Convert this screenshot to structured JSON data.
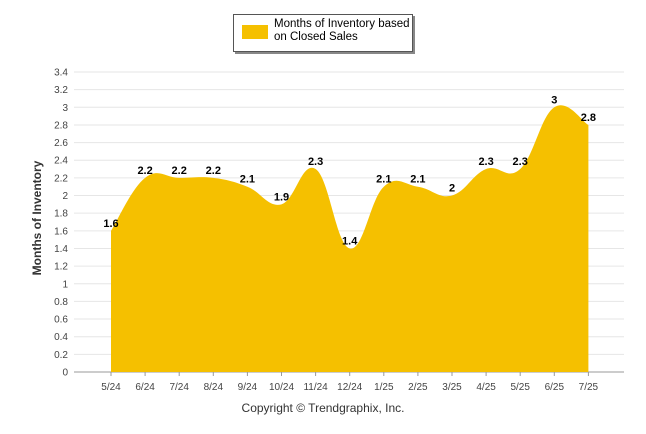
{
  "legend": {
    "label": "Months of Inventory based on Closed Sales"
  },
  "footer": {
    "copyright": "Copyright © Trendgraphix, Inc."
  },
  "colors": {
    "area": "#F5C000",
    "grid": "#e6e6e6"
  },
  "chart_data": {
    "type": "area",
    "categories": [
      "5/24",
      "6/24",
      "7/24",
      "8/24",
      "9/24",
      "10/24",
      "11/24",
      "12/24",
      "1/25",
      "2/25",
      "3/25",
      "4/25",
      "5/25",
      "6/25",
      "7/25"
    ],
    "series": [
      {
        "name": "Months of Inventory based on Closed Sales",
        "values": [
          1.6,
          2.2,
          2.2,
          2.2,
          2.1,
          1.9,
          2.3,
          1.4,
          2.1,
          2.1,
          2.0,
          2.3,
          2.3,
          3.0,
          2.8
        ],
        "labels": [
          "1.6",
          "2.2",
          "2.2",
          "2.2",
          "2.1",
          "1.9",
          "2.3",
          "1.4",
          "2.1",
          "2.1",
          "2",
          "2.3",
          "2.3",
          "3",
          "2.8"
        ]
      }
    ],
    "yticks": [
      "0",
      "0.2",
      "0.4",
      "0.6",
      "0.8",
      "1",
      "1.2",
      "1.4",
      "1.6",
      "1.8",
      "2",
      "2.2",
      "2.4",
      "2.6",
      "2.8",
      "3",
      "3.2",
      "3.4"
    ],
    "ylim": [
      0,
      3.4
    ],
    "ylabel": "Months of Inventory",
    "xlabel": "",
    "grid": true,
    "legend_position": "top-center"
  }
}
